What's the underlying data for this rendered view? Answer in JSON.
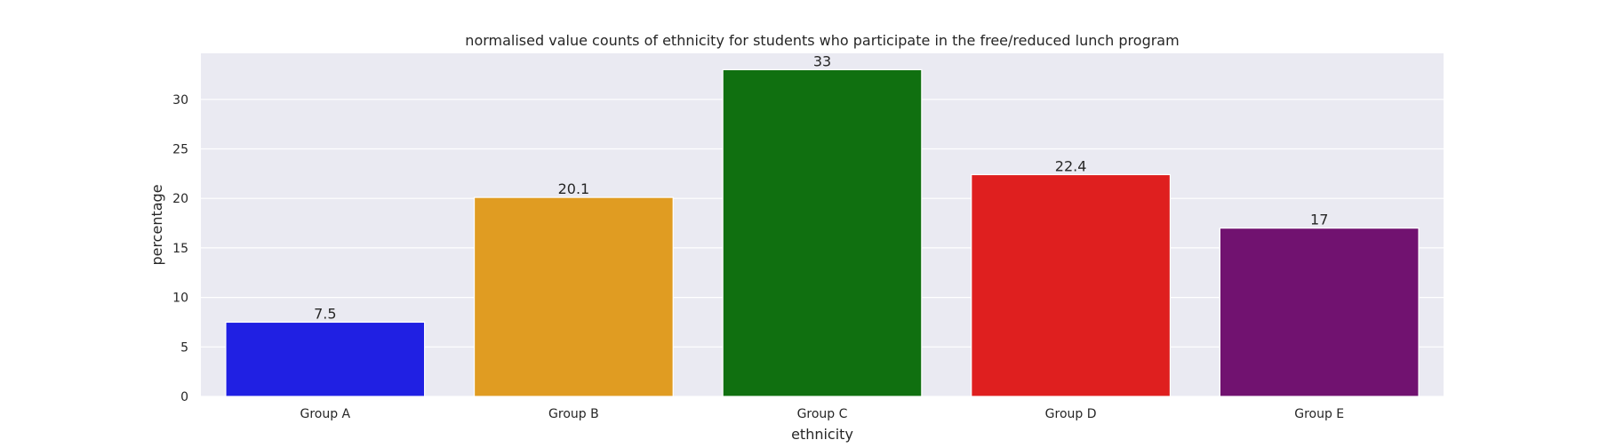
{
  "chart_data": {
    "type": "bar",
    "title": "normalised value counts of ethnicity for students who participate in the free/reduced lunch program",
    "xlabel": "ethnicity",
    "ylabel": "percentage",
    "categories": [
      "Group A",
      "Group B",
      "Group C",
      "Group D",
      "Group E"
    ],
    "values": [
      7.5,
      20.1,
      33,
      22.4,
      17
    ],
    "value_labels": [
      "7.5",
      "20.1",
      "33",
      "22.4",
      "17"
    ],
    "colors": [
      "#2020e3",
      "#e09c22",
      "#107010",
      "#df1f1f",
      "#711270"
    ],
    "ylim": [
      0,
      34.65
    ],
    "yticks": [
      0,
      5,
      10,
      15,
      20,
      25,
      30
    ],
    "grid": true,
    "background": "#eaeaf2",
    "grid_color": "#ffffff",
    "legend": "none"
  }
}
